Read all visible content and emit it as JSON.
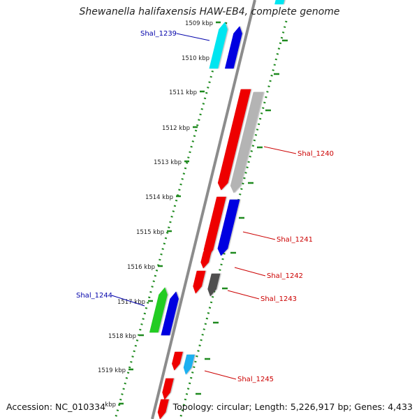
{
  "title": "Shewanella halifaxensis HAW-EB4, complete genome",
  "footer": {
    "accession": "Accession: NC_010334",
    "topology": "Topology: circular; Length: 5,226,917 bp; Genes: 4,433"
  },
  "colors": {
    "backbone": "#8c8c8c",
    "tick_dots": "#1f8a1f",
    "forward_label": "#0000aa",
    "reverse_label": "#cc0000"
  },
  "kbp_labels": [
    "1509 kbp",
    "1510 kbp",
    "1511 kbp",
    "1512 kbp",
    "1513 kbp",
    "1514 kbp",
    "1515 kbp",
    "1516 kbp",
    "1517 kbp",
    "1518 kbp",
    "1519 kbp",
    "kbp"
  ],
  "gene_labels": [
    {
      "text": "Shal_1239",
      "strand": "forward"
    },
    {
      "text": "Shal_1240",
      "strand": "reverse"
    },
    {
      "text": "Shal_1241",
      "strand": "reverse"
    },
    {
      "text": "Shal_1242",
      "strand": "reverse"
    },
    {
      "text": "Shal_1243",
      "strand": "reverse"
    },
    {
      "text": "Shal_1244",
      "strand": "forward"
    },
    {
      "text": "Shal_1245",
      "strand": "reverse"
    }
  ],
  "features": [
    {
      "name": "feature-cyan-forward-1",
      "color": "#00e5f0",
      "dir": "up"
    },
    {
      "name": "feature-blue-forward-1",
      "color": "#0000e0",
      "dir": "up"
    },
    {
      "name": "feature-cyan-top-partial",
      "color": "#00e5f0",
      "dir": "up"
    },
    {
      "name": "feature-red-reverse-1",
      "color": "#ee0000",
      "dir": "down"
    },
    {
      "name": "feature-gray-reverse-1",
      "color": "#b4b4b4",
      "dir": "down"
    },
    {
      "name": "feature-red-reverse-2",
      "color": "#ee0000",
      "dir": "down"
    },
    {
      "name": "feature-blue-reverse-1",
      "color": "#0000e0",
      "dir": "down"
    },
    {
      "name": "feature-red-reverse-3",
      "color": "#ee0000",
      "dir": "down"
    },
    {
      "name": "feature-red-reverse-4",
      "color": "#ee0000",
      "dir": "down"
    },
    {
      "name": "feature-darkgray-reverse-1",
      "color": "#505050",
      "dir": "down"
    },
    {
      "name": "feature-green-forward-1",
      "color": "#22cc22",
      "dir": "up"
    },
    {
      "name": "feature-blue-forward-2",
      "color": "#0000e0",
      "dir": "up"
    },
    {
      "name": "feature-red-reverse-5",
      "color": "#ee0000",
      "dir": "down"
    },
    {
      "name": "feature-lightblue-reverse-1",
      "color": "#1ab0f0",
      "dir": "down"
    },
    {
      "name": "feature-red-reverse-6",
      "color": "#ee0000",
      "dir": "down"
    },
    {
      "name": "feature-red-reverse-7",
      "color": "#ee0000",
      "dir": "down"
    }
  ]
}
